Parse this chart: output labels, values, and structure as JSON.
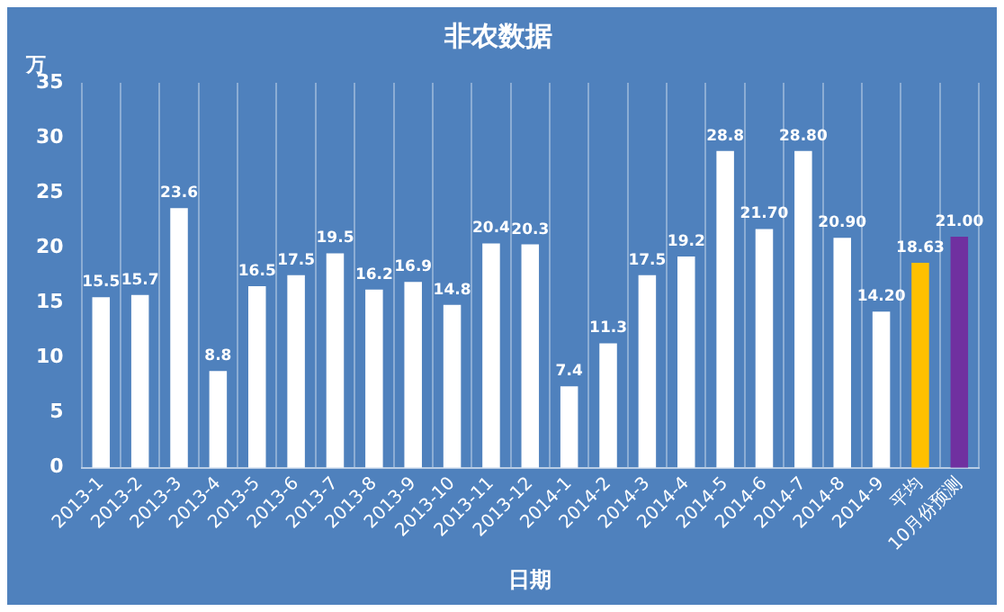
{
  "chart_data": {
    "type": "bar",
    "title": "非农数据",
    "xlabel": "日期",
    "ylabel": "万",
    "categories": [
      "2013-1",
      "2013-2",
      "2013-3",
      "2013-4",
      "2013-5",
      "2013-6",
      "2013-7",
      "2013-8",
      "2013-9",
      "2013-10",
      "2013-11",
      "2013-12",
      "2014-1",
      "2014-2",
      "2014-3",
      "2014-4",
      "2014-5",
      "2014-6",
      "2014-7",
      "2014-8",
      "2014-9",
      "平均",
      "10月份预测"
    ],
    "values": [
      15.5,
      15.7,
      23.6,
      8.8,
      16.5,
      17.5,
      19.5,
      16.2,
      16.9,
      14.8,
      20.4,
      20.3,
      7.4,
      11.3,
      17.5,
      19.2,
      28.8,
      21.7,
      28.8,
      20.9,
      14.2,
      18.63,
      21.0
    ],
    "value_labels": [
      "15.5",
      "15.7",
      "23.6",
      "8.8",
      "16.5",
      "17.5",
      "19.5",
      "16.2",
      "16.9",
      "14.8",
      "20.4",
      "20.3",
      "7.4",
      "11.3",
      "17.5",
      "19.2",
      "28.8",
      "21.70",
      "28.80",
      "20.90",
      "14.20",
      "18.63",
      "21.00"
    ],
    "colors": [
      "#ffffff",
      "#ffffff",
      "#ffffff",
      "#ffffff",
      "#ffffff",
      "#ffffff",
      "#ffffff",
      "#ffffff",
      "#ffffff",
      "#ffffff",
      "#ffffff",
      "#ffffff",
      "#ffffff",
      "#ffffff",
      "#ffffff",
      "#ffffff",
      "#ffffff",
      "#ffffff",
      "#ffffff",
      "#ffffff",
      "#ffffff",
      "#ffc000",
      "#7030a0"
    ],
    "ylim": [
      0,
      35
    ],
    "yticks": [
      0,
      5,
      10,
      15,
      20,
      25,
      30,
      35
    ],
    "grid": "x",
    "legend": false
  }
}
